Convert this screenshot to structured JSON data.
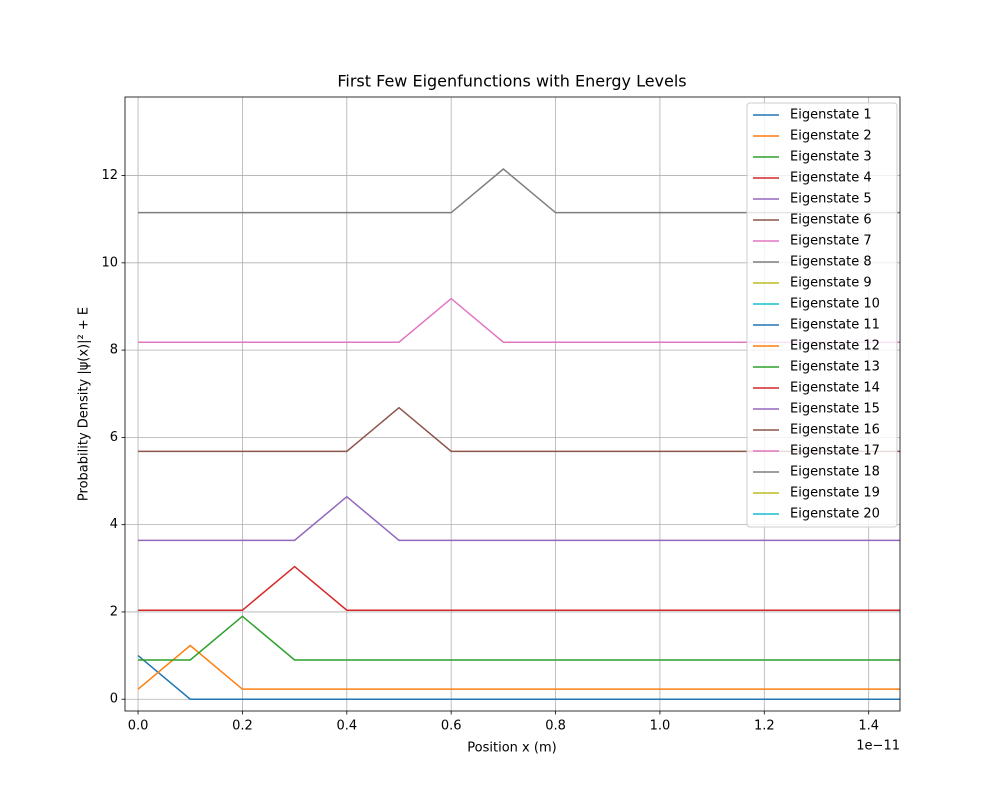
{
  "chart_data": {
    "type": "line",
    "title": "First Few Eigenfunctions with Energy Levels",
    "x_label": "Position x (m)",
    "y_label": "Probability Density |ψ(x)|² + E",
    "x_offset_label": "1e−11",
    "x": [
      0,
      0.1,
      0.2,
      0.3,
      0.4,
      0.5,
      0.6,
      0.7,
      0.8,
      0.9,
      1.0,
      1.1,
      1.2,
      1.3,
      1.4,
      1.5
    ],
    "series": [
      {
        "name": "Eigenstate 1",
        "color": "#1f77b4",
        "values": [
          1,
          0,
          0,
          0,
          0,
          0,
          0,
          0,
          0,
          0,
          0,
          0,
          0,
          0,
          0,
          0
        ]
      },
      {
        "name": "Eigenstate 2",
        "color": "#ff7f0e",
        "values": [
          0.23,
          1.23,
          0.23,
          0.23,
          0.23,
          0.23,
          0.23,
          0.23,
          0.23,
          0.23,
          0.23,
          0.23,
          0.23,
          0.23,
          0.23,
          0.23
        ]
      },
      {
        "name": "Eigenstate 3",
        "color": "#2ca02c",
        "values": [
          0.9,
          0.9,
          1.9,
          0.9,
          0.9,
          0.9,
          0.9,
          0.9,
          0.9,
          0.9,
          0.9,
          0.9,
          0.9,
          0.9,
          0.9,
          0.9
        ]
      },
      {
        "name": "Eigenstate 4",
        "color": "#d62728",
        "values": [
          2.04,
          2.04,
          2.04,
          3.04,
          2.04,
          2.04,
          2.04,
          2.04,
          2.04,
          2.04,
          2.04,
          2.04,
          2.04,
          2.04,
          2.04,
          2.04
        ]
      },
      {
        "name": "Eigenstate 5",
        "color": "#9467bd",
        "values": [
          3.64,
          3.64,
          3.64,
          3.64,
          4.64,
          3.64,
          3.64,
          3.64,
          3.64,
          3.64,
          3.64,
          3.64,
          3.64,
          3.64,
          3.64,
          3.64
        ]
      },
      {
        "name": "Eigenstate 6",
        "color": "#8c564b",
        "values": [
          5.68,
          5.68,
          5.68,
          5.68,
          5.68,
          6.68,
          5.68,
          5.68,
          5.68,
          5.68,
          5.68,
          5.68,
          5.68,
          5.68,
          5.68,
          5.68
        ]
      },
      {
        "name": "Eigenstate 7",
        "color": "#e377c2",
        "values": [
          8.18,
          8.18,
          8.18,
          8.18,
          8.18,
          8.18,
          9.18,
          8.18,
          8.18,
          8.18,
          8.18,
          8.18,
          8.18,
          8.18,
          8.18,
          8.18
        ]
      },
      {
        "name": "Eigenstate 8",
        "color": "#7f7f7f",
        "values": [
          11.15,
          11.15,
          11.15,
          11.15,
          11.15,
          11.15,
          11.15,
          12.15,
          11.15,
          11.15,
          11.15,
          11.15,
          11.15,
          11.15,
          11.15,
          11.15
        ]
      },
      {
        "name": "Eigenstate 9",
        "color": "#bcbd22",
        "values": [
          null,
          null,
          null,
          null,
          null,
          null,
          null,
          null,
          null,
          null,
          null,
          null,
          null,
          null,
          null,
          null
        ]
      },
      {
        "name": "Eigenstate 10",
        "color": "#17becf",
        "values": [
          null,
          null,
          null,
          null,
          null,
          null,
          null,
          null,
          null,
          null,
          null,
          null,
          null,
          null,
          null,
          null
        ]
      },
      {
        "name": "Eigenstate 11",
        "color": "#1f77b4",
        "values": [
          null,
          null,
          null,
          null,
          null,
          null,
          null,
          null,
          null,
          null,
          null,
          null,
          null,
          null,
          null,
          null
        ]
      },
      {
        "name": "Eigenstate 12",
        "color": "#ff7f0e",
        "values": [
          null,
          null,
          null,
          null,
          null,
          null,
          null,
          null,
          null,
          null,
          null,
          null,
          null,
          null,
          null,
          null
        ]
      },
      {
        "name": "Eigenstate 13",
        "color": "#2ca02c",
        "values": [
          null,
          null,
          null,
          null,
          null,
          null,
          null,
          null,
          null,
          null,
          null,
          null,
          null,
          null,
          null,
          null
        ]
      },
      {
        "name": "Eigenstate 14",
        "color": "#d62728",
        "values": [
          null,
          null,
          null,
          null,
          null,
          null,
          null,
          null,
          null,
          null,
          null,
          null,
          null,
          null,
          null,
          null
        ]
      },
      {
        "name": "Eigenstate 15",
        "color": "#9467bd",
        "values": [
          null,
          null,
          null,
          null,
          null,
          null,
          null,
          null,
          null,
          null,
          null,
          null,
          null,
          null,
          null,
          null
        ]
      },
      {
        "name": "Eigenstate 16",
        "color": "#8c564b",
        "values": [
          null,
          null,
          null,
          null,
          null,
          null,
          null,
          null,
          null,
          null,
          null,
          null,
          null,
          null,
          null,
          null
        ]
      },
      {
        "name": "Eigenstate 17",
        "color": "#e377c2",
        "values": [
          null,
          null,
          null,
          null,
          null,
          null,
          null,
          null,
          null,
          null,
          null,
          null,
          null,
          null,
          null,
          null
        ]
      },
      {
        "name": "Eigenstate 18",
        "color": "#7f7f7f",
        "values": [
          null,
          null,
          null,
          null,
          null,
          null,
          null,
          null,
          null,
          null,
          null,
          null,
          null,
          null,
          null,
          null
        ]
      },
      {
        "name": "Eigenstate 19",
        "color": "#bcbd22",
        "values": [
          null,
          null,
          null,
          null,
          null,
          null,
          null,
          null,
          null,
          null,
          null,
          null,
          null,
          null,
          null,
          null
        ]
      },
      {
        "name": "Eigenstate 20",
        "color": "#17becf",
        "values": [
          null,
          null,
          null,
          null,
          null,
          null,
          null,
          null,
          null,
          null,
          null,
          null,
          null,
          null,
          null,
          null
        ]
      }
    ],
    "xlim": [
      -0.025,
      1.46
    ],
    "ylim": [
      -0.27,
      13.8
    ],
    "xticks": [
      {
        "value": 0,
        "label": "0.0"
      },
      {
        "value": 0.2,
        "label": "0.2"
      },
      {
        "value": 0.4,
        "label": "0.4"
      },
      {
        "value": 0.6,
        "label": "0.6"
      },
      {
        "value": 0.8,
        "label": "0.8"
      },
      {
        "value": 1.0,
        "label": "1.0"
      },
      {
        "value": 1.2,
        "label": "1.2"
      },
      {
        "value": 1.4,
        "label": "1.4"
      }
    ],
    "yticks": [
      0,
      2,
      4,
      6,
      8,
      10,
      12
    ],
    "grid": true,
    "legend": "upper right"
  }
}
